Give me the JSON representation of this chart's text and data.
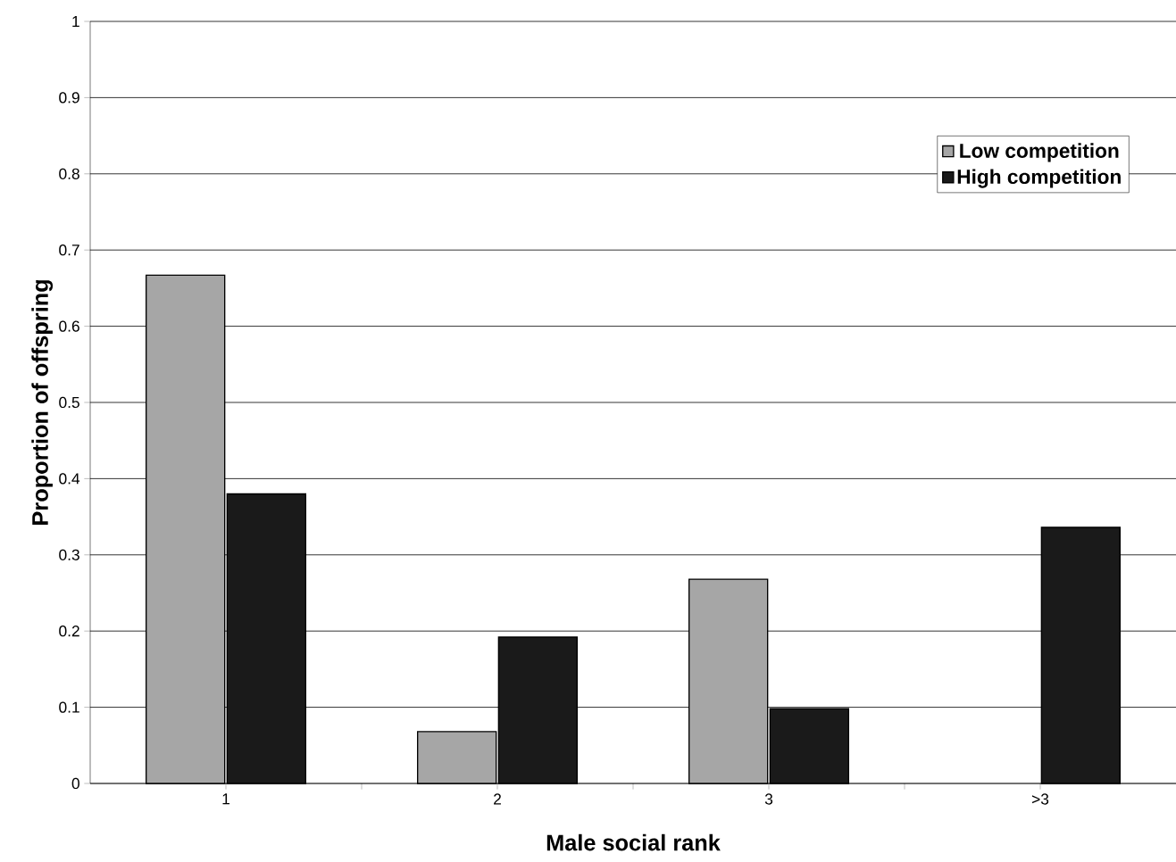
{
  "chart_data": {
    "type": "bar",
    "xlabel": "Male social rank",
    "ylabel": "Proportion of offspring",
    "categories": [
      "1",
      "2",
      "3",
      ">3"
    ],
    "series": [
      {
        "name": "Low competition",
        "color": "#a6a6a6",
        "values": [
          0.667,
          0.068,
          0.268,
          null
        ]
      },
      {
        "name": "High competition",
        "color": "#1a1a1a",
        "values": [
          0.38,
          0.192,
          0.098,
          0.336
        ]
      }
    ],
    "ylim": [
      0,
      1
    ],
    "yticks": [
      0,
      0.1,
      0.2,
      0.3,
      0.4,
      0.5,
      0.6,
      0.7,
      0.8,
      0.9,
      1
    ],
    "grid": "y",
    "legend": "top right"
  }
}
